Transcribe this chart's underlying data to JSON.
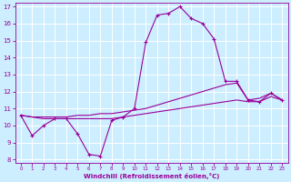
{
  "x": [
    0,
    1,
    2,
    3,
    4,
    5,
    6,
    7,
    8,
    9,
    10,
    11,
    12,
    13,
    14,
    15,
    16,
    17,
    18,
    19,
    20,
    21,
    22,
    23
  ],
  "line1": [
    10.6,
    9.4,
    10.0,
    10.4,
    10.4,
    9.5,
    8.3,
    8.2,
    10.3,
    10.5,
    11.0,
    14.9,
    16.5,
    16.6,
    17.0,
    16.3,
    16.0,
    15.1,
    12.6,
    12.6,
    11.5,
    11.4,
    11.9,
    11.5
  ],
  "line2": [
    10.6,
    10.5,
    10.5,
    10.5,
    10.5,
    10.6,
    10.6,
    10.7,
    10.7,
    10.8,
    10.9,
    11.0,
    11.2,
    11.4,
    11.6,
    11.8,
    12.0,
    12.2,
    12.4,
    12.5,
    11.5,
    11.6,
    11.9,
    11.5
  ],
  "line3": [
    10.6,
    10.5,
    10.4,
    10.4,
    10.4,
    10.4,
    10.4,
    10.4,
    10.4,
    10.5,
    10.6,
    10.7,
    10.8,
    10.9,
    11.0,
    11.1,
    11.2,
    11.3,
    11.4,
    11.5,
    11.4,
    11.4,
    11.7,
    11.5
  ],
  "line_color": "#990099",
  "bg_color": "#cceeff",
  "grid_color": "#ffffff",
  "xlabel": "Windchill (Refroidissement éolien,°C)",
  "xlabel_color": "#990099",
  "tick_color": "#990099",
  "ylim": [
    8,
    17
  ],
  "xlim": [
    -0.5,
    23.5
  ],
  "yticks": [
    8,
    9,
    10,
    11,
    12,
    13,
    14,
    15,
    16,
    17
  ],
  "xticks": [
    0,
    1,
    2,
    3,
    4,
    5,
    6,
    7,
    8,
    9,
    10,
    11,
    12,
    13,
    14,
    15,
    16,
    17,
    18,
    19,
    20,
    21,
    22,
    23
  ]
}
